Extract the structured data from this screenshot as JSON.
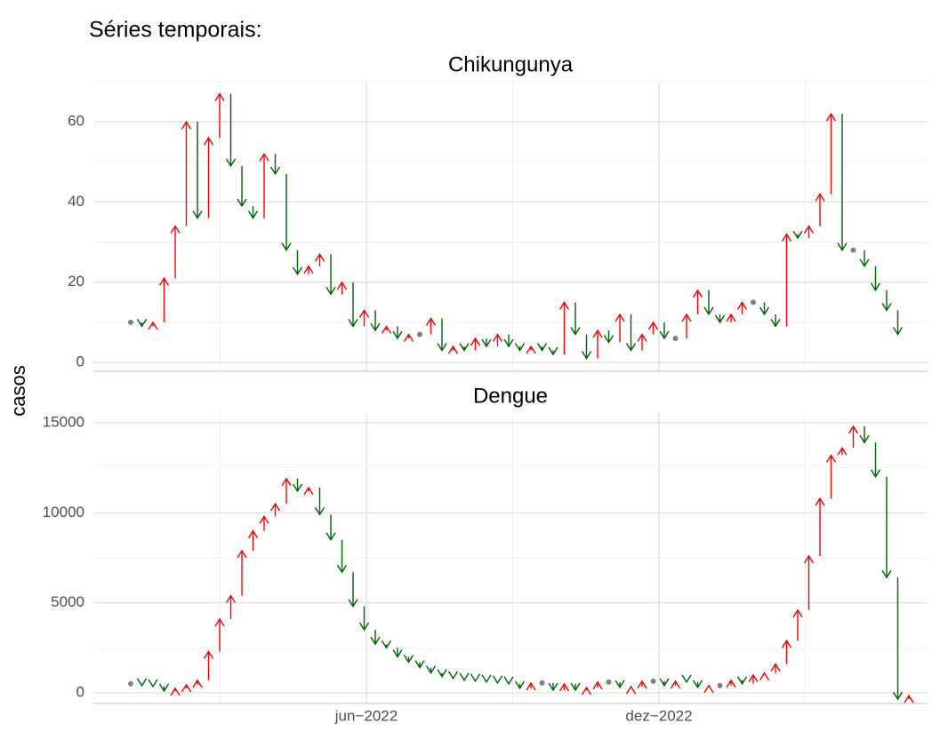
{
  "title": "Séries temporais:",
  "y_label": "casos",
  "chart_data": [
    {
      "type": "arrow",
      "title": "Chikungunya",
      "x": [
        1,
        2,
        3,
        4,
        5,
        6,
        7,
        8,
        9,
        10,
        11,
        12,
        13,
        14,
        15,
        16,
        17,
        18,
        19,
        20,
        21,
        22,
        23,
        24,
        25,
        26,
        27,
        28,
        29,
        30,
        31,
        32,
        33,
        34,
        35,
        36,
        37,
        38,
        39,
        40,
        41,
        42,
        43,
        44,
        45,
        46,
        47,
        48,
        49,
        50,
        51,
        52,
        53,
        54,
        55,
        56,
        57,
        58,
        59,
        60,
        61,
        62,
        63,
        64,
        65,
        66,
        67,
        68,
        69,
        70,
        71
      ],
      "values": [
        10,
        9,
        10,
        21,
        34,
        60,
        36,
        56,
        67,
        49,
        39,
        36,
        52,
        47,
        28,
        22,
        24,
        27,
        17,
        20,
        9,
        13,
        8,
        9,
        6,
        7,
        7,
        11,
        3,
        4,
        3,
        6,
        4,
        7,
        4,
        3,
        4,
        3,
        2,
        15,
        7,
        1,
        8,
        5,
        12,
        3,
        7,
        10,
        6,
        6,
        12,
        18,
        12,
        10,
        12,
        15,
        15,
        12,
        9,
        32,
        31,
        34,
        42,
        62,
        28,
        28,
        24,
        18,
        13,
        7,
        null
      ],
      "up_color": "#ff0000",
      "down_color": "#006400",
      "flat_color": "#808080",
      "xlim": [
        -2.36,
        72.68
      ],
      "xticks": [
        22.2,
        48.52
      ],
      "ylim": [
        -2.2,
        70
      ],
      "yticks": [
        0,
        20,
        40,
        60
      ],
      "grid": true
    },
    {
      "type": "arrow",
      "title": "Dengue",
      "x": [
        1,
        2,
        3,
        4,
        5,
        6,
        7,
        8,
        9,
        10,
        11,
        12,
        13,
        14,
        15,
        16,
        17,
        18,
        19,
        20,
        21,
        22,
        23,
        24,
        25,
        26,
        27,
        28,
        29,
        30,
        31,
        32,
        33,
        34,
        35,
        36,
        37,
        38,
        39,
        40,
        41,
        42,
        43,
        44,
        45,
        46,
        47,
        48,
        49,
        50,
        51,
        52,
        53,
        54,
        55,
        56,
        57,
        58,
        59,
        60,
        61,
        62,
        63,
        64,
        65,
        66,
        67,
        68,
        69,
        70,
        71
      ],
      "values": [
        500,
        400,
        350,
        100,
        250,
        450,
        700,
        2300,
        4100,
        5400,
        7900,
        9000,
        9800,
        10500,
        11900,
        11200,
        11400,
        9900,
        8500,
        6700,
        4800,
        3500,
        2700,
        2500,
        2000,
        1700,
        1400,
        1100,
        900,
        800,
        700,
        650,
        600,
        550,
        500,
        250,
        550,
        550,
        150,
        500,
        150,
        300,
        600,
        600,
        300,
        350,
        650,
        650,
        400,
        650,
        600,
        300,
        400,
        400,
        700,
        500,
        1000,
        1100,
        1600,
        2900,
        4600,
        7600,
        10800,
        13200,
        13600,
        14800,
        13900,
        12000,
        6400,
        -350,
        -150
      ],
      "up_color": "#ff0000",
      "down_color": "#006400",
      "flat_color": "#808080",
      "xlim": [
        -2.36,
        72.68
      ],
      "xticks": [
        {
          "value": 22.2,
          "label": "jun−2022"
        },
        {
          "value": 48.52,
          "label": "dez−2022"
        }
      ],
      "ylim": [
        -590,
        15540
      ],
      "yticks": [
        0,
        5000,
        10000,
        15000
      ],
      "grid": true
    }
  ]
}
